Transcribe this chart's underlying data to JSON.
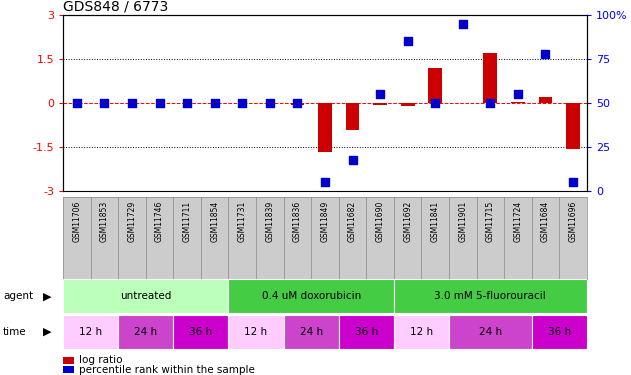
{
  "title": "GDS848 / 6773",
  "samples": [
    "GSM11706",
    "GSM11853",
    "GSM11729",
    "GSM11746",
    "GSM11711",
    "GSM11854",
    "GSM11731",
    "GSM11839",
    "GSM11836",
    "GSM11849",
    "GSM11682",
    "GSM11690",
    "GSM11692",
    "GSM11841",
    "GSM11901",
    "GSM11715",
    "GSM11724",
    "GSM11684",
    "GSM11696"
  ],
  "log_ratio": [
    0.0,
    0.0,
    0.0,
    0.0,
    0.0,
    0.0,
    0.0,
    0.0,
    -0.05,
    -1.65,
    -0.9,
    -0.05,
    -0.1,
    1.2,
    0.0,
    1.7,
    0.05,
    0.2,
    -1.55
  ],
  "percentile": [
    50,
    50,
    50,
    50,
    50,
    50,
    50,
    50,
    50,
    5,
    18,
    55,
    85,
    50,
    95,
    50,
    55,
    78,
    5
  ],
  "ylim_left": [
    -3,
    3
  ],
  "ylim_right": [
    0,
    100
  ],
  "yticks_left": [
    -3,
    -1.5,
    0,
    1.5,
    3
  ],
  "yticks_right": [
    0,
    25,
    50,
    75,
    100
  ],
  "hlines_dotted": [
    -1.5,
    1.5
  ],
  "hline_dashed": 0,
  "bar_color": "#cc0000",
  "dot_color": "#0000cc",
  "bar_width": 0.5,
  "dot_size": 30,
  "agent_groups": [
    {
      "label": "untreated",
      "start": 0,
      "end": 5,
      "color": "#bbffbb"
    },
    {
      "label": "0.4 uM doxorubicin",
      "start": 6,
      "end": 11,
      "color": "#44cc44"
    },
    {
      "label": "3.0 mM 5-fluorouracil",
      "start": 12,
      "end": 18,
      "color": "#44cc44"
    }
  ],
  "time_groups": [
    {
      "label": "12 h",
      "start": 0,
      "end": 1,
      "color": "#ffccff"
    },
    {
      "label": "24 h",
      "start": 2,
      "end": 3,
      "color": "#cc44cc"
    },
    {
      "label": "36 h",
      "start": 4,
      "end": 5,
      "color": "#cc00cc"
    },
    {
      "label": "12 h",
      "start": 6,
      "end": 7,
      "color": "#ffccff"
    },
    {
      "label": "24 h",
      "start": 8,
      "end": 9,
      "color": "#cc44cc"
    },
    {
      "label": "36 h",
      "start": 10,
      "end": 11,
      "color": "#cc00cc"
    },
    {
      "label": "12 h",
      "start": 12,
      "end": 13,
      "color": "#ffccff"
    },
    {
      "label": "24 h",
      "start": 14,
      "end": 16,
      "color": "#cc44cc"
    },
    {
      "label": "36 h",
      "start": 17,
      "end": 18,
      "color": "#cc00cc"
    }
  ],
  "legend_log": "log ratio",
  "legend_pct": "percentile rank within the sample",
  "label_fontsize": 5.5,
  "agent_fontsize": 7.5,
  "time_fontsize": 7.5,
  "title_fontsize": 10,
  "sample_bg_color": "#cccccc",
  "sample_border_color": "#888888"
}
